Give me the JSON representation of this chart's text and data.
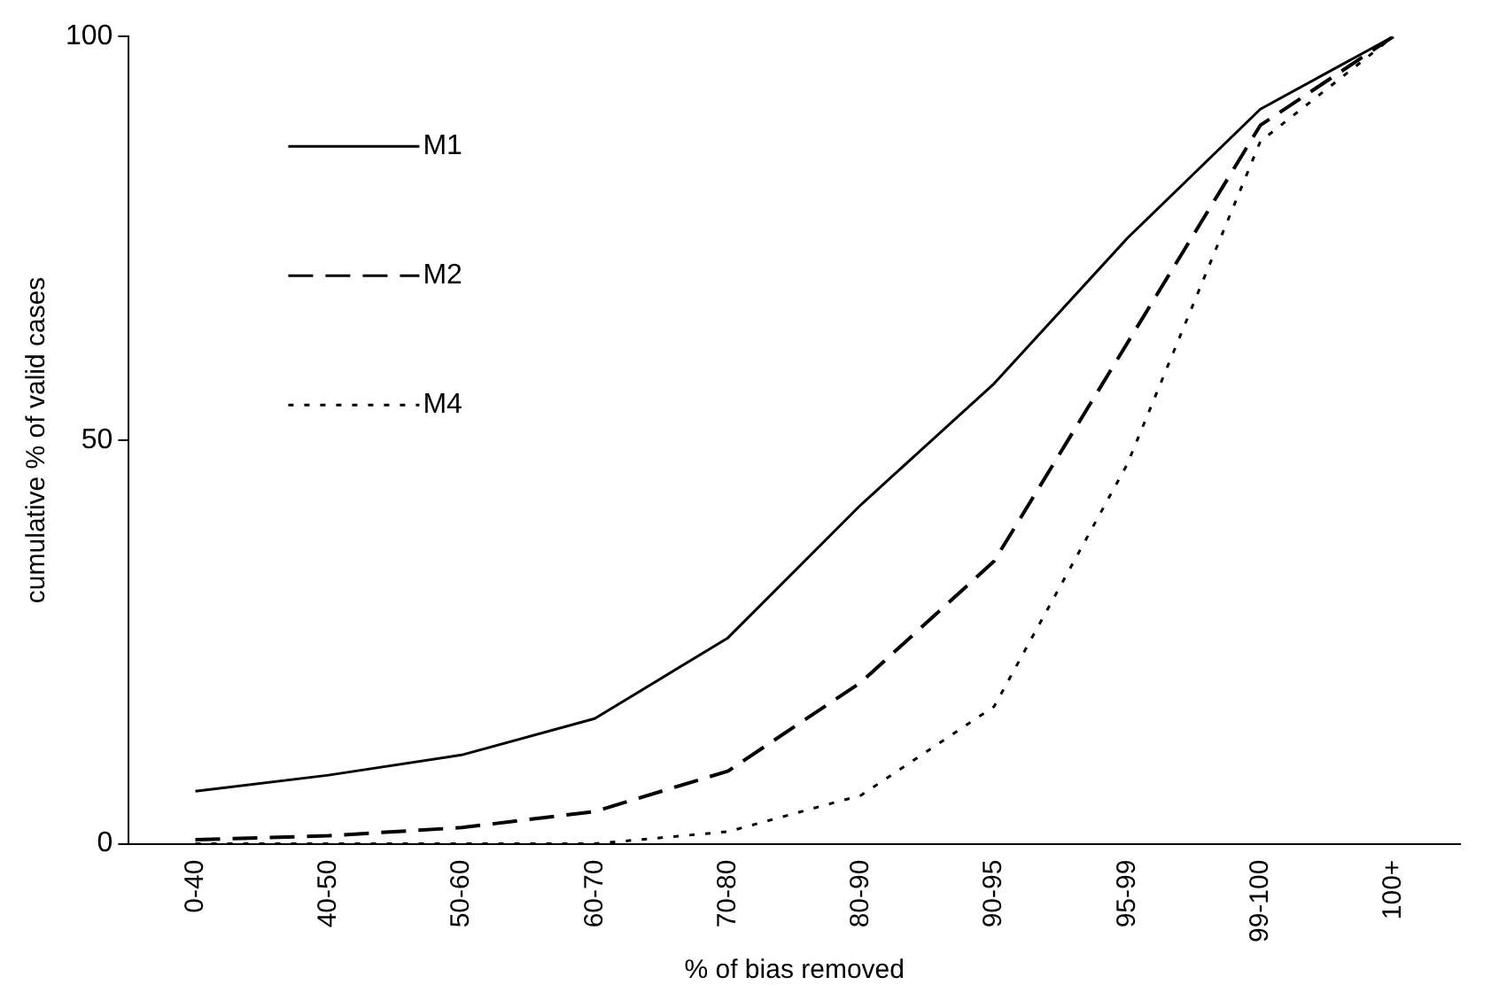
{
  "chart_data": {
    "type": "line",
    "xlabel": "% of bias removed",
    "ylabel": "cumulative % of valid cases",
    "categories": [
      "0-40",
      "40-50",
      "50-60",
      "60-70",
      "70-80",
      "80-90",
      "90-95",
      "95-99",
      "99-100",
      "100+"
    ],
    "series": [
      {
        "name": "M1",
        "color": "#000000",
        "line_style": "solid",
        "values": [
          6.5,
          8.5,
          11,
          15.5,
          25.5,
          42,
          57,
          75,
          91,
          100
        ]
      },
      {
        "name": "M2",
        "color": "#000000",
        "line_style": "dashed",
        "values": [
          0.5,
          1,
          2,
          4,
          9,
          20,
          35,
          62,
          89,
          100
        ]
      },
      {
        "name": "M4",
        "color": "#000000",
        "line_style": "dotted",
        "values": [
          0,
          0,
          0,
          0,
          1.5,
          6,
          17,
          47,
          87,
          100
        ]
      }
    ],
    "ylim": [
      0,
      100
    ],
    "yticks": [
      0,
      50,
      100
    ],
    "grid": false,
    "legend": "top left",
    "marker": "none"
  }
}
